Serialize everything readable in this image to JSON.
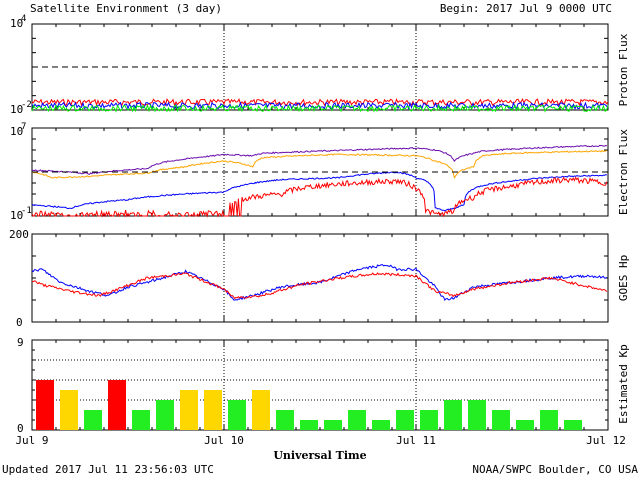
{
  "header": {
    "title": "Satellite Environment (3 day)",
    "begin": "Begin:  2017 Jul 9 0000 UTC"
  },
  "footer": {
    "updated": "Updated 2017 Jul 11 23:56:03 UTC",
    "credit": "NOAA/SWPC Boulder, CO USA"
  },
  "x_axis": {
    "label": "Universal Time",
    "ticks": [
      "Jul 9",
      "Jul 10",
      "Jul 11",
      "Jul 12"
    ]
  },
  "colors": {
    "red": "#ff0000",
    "blue": "#0000ff",
    "green": "#00ee00",
    "purple": "#6a0dad",
    "orange": "#ffa500",
    "kp_red": "#ff0000",
    "kp_yellow": "#ffd700",
    "kp_green": "#22ee22"
  },
  "chart_data": [
    {
      "type": "line",
      "name": "proton-flux",
      "ylabel": "Proton Flux",
      "yscale": "log",
      "ylim": [
        0.01,
        10000
      ],
      "tick_labels": [
        {
          "base": "10",
          "exp": "4"
        },
        {
          "base": "10",
          "exp": "-2"
        }
      ],
      "threshold": 10,
      "x_range_days": [
        0,
        3
      ],
      "series": [
        {
          "color": "red",
          "level": 0.035
        },
        {
          "color": "blue",
          "level": 0.02
        },
        {
          "color": "green",
          "level": 0.013
        }
      ]
    },
    {
      "type": "line",
      "name": "electron-flux",
      "ylabel": "Electron Flux",
      "yscale": "log",
      "ylim": [
        0.1,
        10000000
      ],
      "tick_labels": [
        {
          "base": "10",
          "exp": "7"
        },
        {
          "base": "10",
          "exp": "-1"
        }
      ],
      "threshold": 1000,
      "x_range_days": [
        0,
        3
      ],
      "series": [
        {
          "color": "purple",
          "x": [
            0,
            0.3,
            0.6,
            0.8,
            0.95,
            1.0,
            1.15,
            1.2,
            1.3,
            1.6,
            2.0,
            2.1,
            2.2,
            2.3,
            2.35,
            2.5,
            2.8,
            3.0
          ],
          "y": [
            1500,
            700,
            2000,
            15000,
            30000,
            40000,
            30000,
            50000,
            60000,
            90000,
            150000,
            100000,
            10000,
            50000,
            80000,
            120000,
            200000,
            250000
          ]
        },
        {
          "color": "orange",
          "x": [
            0,
            0.1,
            0.3,
            0.6,
            0.8,
            0.95,
            1.0,
            1.15,
            1.2,
            1.3,
            1.6,
            2.0,
            2.1,
            2.2,
            2.3,
            2.35,
            2.5,
            2.8,
            3.0
          ],
          "y": [
            1000,
            300,
            400,
            800,
            3000,
            8000,
            10000,
            3000,
            20000,
            25000,
            40000,
            30000,
            10000,
            300,
            3000,
            30000,
            50000,
            70000,
            80000
          ]
        },
        {
          "color": "blue",
          "x": [
            0,
            0.2,
            0.5,
            0.8,
            1.0,
            1.1,
            1.3,
            1.6,
            1.9,
            2.0,
            2.1,
            2.15,
            2.2,
            2.25,
            2.3,
            2.5,
            2.8,
            3.0
          ],
          "y": [
            1,
            0.5,
            3,
            10,
            15,
            60,
            200,
            300,
            1000,
            300,
            0.5,
            0.3,
            0.5,
            1,
            30,
            150,
            400,
            500
          ]
        },
        {
          "color": "red",
          "x": [
            0,
            0.15,
            0.3,
            0.5,
            0.8,
            1.0,
            1.3,
            1.6,
            1.9,
            2.0,
            2.05,
            2.1,
            2.15,
            2.2,
            2.3,
            2.5,
            2.8,
            3.0
          ],
          "y": [
            0.2,
            0.1,
            0.15,
            0.2,
            0.15,
            0.2,
            10,
            80,
            150,
            30,
            0.3,
            0.15,
            0.15,
            0.3,
            5,
            50,
            200,
            100
          ]
        }
      ]
    },
    {
      "type": "line",
      "name": "goes-hp",
      "ylabel": "GOES Hp",
      "ylim": [
        0,
        200
      ],
      "tick_labels": [
        "200",
        "0"
      ],
      "x_range_days": [
        0,
        3
      ],
      "series": [
        {
          "color": "blue",
          "x": [
            0,
            0.05,
            0.15,
            0.3,
            0.4,
            0.5,
            0.6,
            0.8,
            1.0,
            1.05,
            1.15,
            1.3,
            1.5,
            1.7,
            1.85,
            1.9,
            2.0,
            2.1,
            2.15,
            2.2,
            2.3,
            2.5,
            2.7,
            2.9,
            3.0
          ],
          "y": [
            115,
            120,
            90,
            70,
            60,
            80,
            90,
            115,
            75,
            50,
            60,
            80,
            90,
            120,
            130,
            120,
            120,
            80,
            50,
            55,
            80,
            90,
            100,
            105,
            100
          ]
        },
        {
          "color": "red",
          "x": [
            0,
            0.05,
            0.2,
            0.35,
            0.45,
            0.6,
            0.8,
            1.0,
            1.05,
            1.2,
            1.4,
            1.6,
            1.8,
            2.0,
            2.1,
            2.2,
            2.3,
            2.5,
            2.7,
            2.9,
            3.0
          ],
          "y": [
            95,
            85,
            70,
            60,
            75,
            100,
            110,
            75,
            55,
            60,
            85,
            100,
            110,
            105,
            70,
            60,
            75,
            90,
            100,
            80,
            70
          ]
        }
      ]
    },
    {
      "type": "bar",
      "name": "estimated-kp",
      "ylabel": "Estimated Kp",
      "ylim": [
        0,
        9
      ],
      "tick_labels": [
        "9",
        "0"
      ],
      "bar_width_hours": 3,
      "values": [
        5,
        4,
        2,
        5,
        2,
        3,
        4,
        4,
        3,
        4,
        2,
        1,
        1,
        2,
        1,
        2,
        2,
        3,
        3,
        2,
        1,
        2,
        1,
        0
      ],
      "colors": [
        "red",
        "yellow",
        "green",
        "red",
        "green",
        "green",
        "yellow",
        "yellow",
        "green",
        "yellow",
        "green",
        "green",
        "green",
        "green",
        "green",
        "green",
        "green",
        "green",
        "green",
        "green",
        "green",
        "green",
        "green",
        "green"
      ]
    }
  ]
}
